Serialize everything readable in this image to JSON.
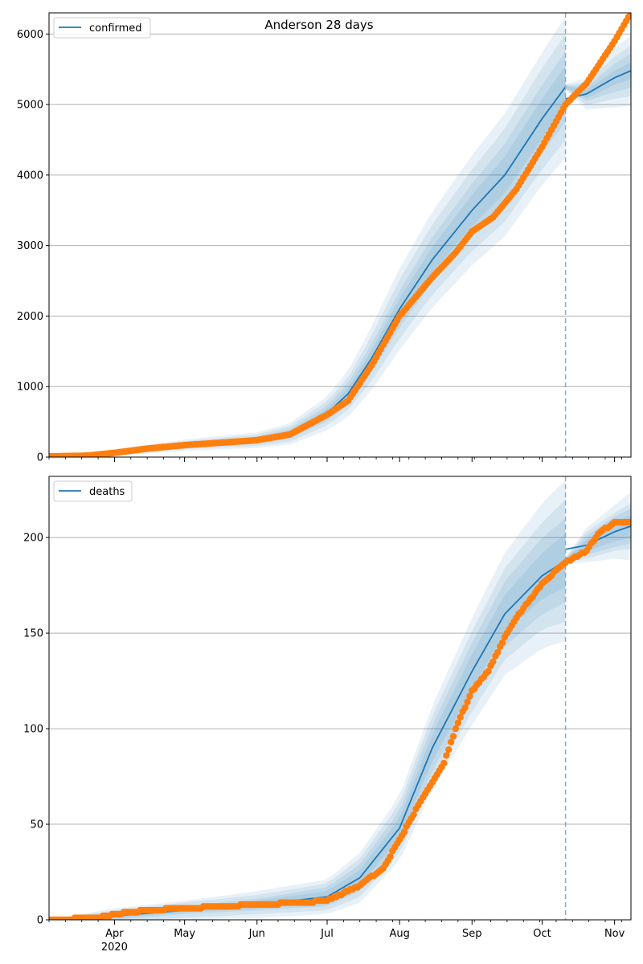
{
  "figure_title": "Anderson 28 days",
  "x_ticks": [
    {
      "date": "2020-04-01",
      "label": "Apr",
      "sublabel": "2020"
    },
    {
      "date": "2020-05-01",
      "label": "May"
    },
    {
      "date": "2020-06-01",
      "label": "Jun"
    },
    {
      "date": "2020-07-01",
      "label": "Jul"
    },
    {
      "date": "2020-08-01",
      "label": "Aug"
    },
    {
      "date": "2020-09-01",
      "label": "Sep"
    },
    {
      "date": "2020-10-01",
      "label": "Oct"
    },
    {
      "date": "2020-11-01",
      "label": "Nov"
    }
  ],
  "colors": {
    "model_line": "#1f77b4",
    "observed_points": "#ff7f0e",
    "band": "#1f77b4",
    "forecast_divider": "#7aaee0",
    "grid": "#b0b0b0"
  },
  "chart_data": [
    {
      "type": "line",
      "name": "confirmed",
      "legend": "top-left",
      "grid": "horizontal",
      "xlim": [
        "2020-03-04",
        "2020-11-08"
      ],
      "ylim": [
        0,
        6300
      ],
      "yticks": [
        0,
        1000,
        2000,
        3000,
        4000,
        5000,
        6000
      ],
      "forecast_start": "2020-10-11",
      "model": {
        "name": "confirmed",
        "x": [
          "2020-03-04",
          "2020-04-01",
          "2020-05-01",
          "2020-06-01",
          "2020-06-15",
          "2020-07-01",
          "2020-07-10",
          "2020-07-20",
          "2020-08-01",
          "2020-08-15",
          "2020-09-01",
          "2020-09-15",
          "2020-10-01",
          "2020-10-11",
          "2020-10-20",
          "2020-11-01",
          "2020-11-08"
        ],
        "y": [
          0,
          60,
          170,
          240,
          330,
          620,
          900,
          1400,
          2100,
          2800,
          3500,
          4000,
          4800,
          5250,
          5150,
          5380,
          5480
        ],
        "band_half_widths": [
          [
            0,
            10,
            20,
            30,
            40,
            60,
            80,
            110,
            150,
            180,
            220,
            260,
            280,
            300,
            60,
            100,
            120
          ],
          [
            0,
            20,
            35,
            50,
            70,
            110,
            150,
            200,
            260,
            320,
            380,
            440,
            480,
            500,
            100,
            200,
            240
          ],
          [
            0,
            30,
            55,
            80,
            110,
            170,
            230,
            320,
            420,
            500,
            580,
            660,
            720,
            750,
            160,
            300,
            360
          ],
          [
            0,
            45,
            80,
            110,
            150,
            240,
            330,
            450,
            580,
            680,
            780,
            870,
            940,
            1000,
            220,
            420,
            500
          ]
        ]
      },
      "observed": {
        "x": [
          "2020-03-04",
          "2020-03-20",
          "2020-04-01",
          "2020-04-15",
          "2020-05-01",
          "2020-05-15",
          "2020-06-01",
          "2020-06-15",
          "2020-07-01",
          "2020-07-10",
          "2020-07-20",
          "2020-08-01",
          "2020-08-15",
          "2020-08-25",
          "2020-09-01",
          "2020-09-10",
          "2020-09-20",
          "2020-10-01",
          "2020-10-11",
          "2020-10-20",
          "2020-11-01",
          "2020-11-08"
        ],
        "y": [
          10,
          20,
          60,
          120,
          170,
          200,
          240,
          320,
          600,
          800,
          1300,
          2000,
          2550,
          2900,
          3200,
          3400,
          3800,
          4400,
          5000,
          5300,
          5900,
          6300
        ]
      }
    },
    {
      "type": "line",
      "name": "deaths",
      "legend": "top-left",
      "grid": "horizontal",
      "xlim": [
        "2020-03-04",
        "2020-11-08"
      ],
      "ylim": [
        0,
        232
      ],
      "yticks": [
        0,
        50,
        100,
        150,
        200
      ],
      "forecast_start": "2020-10-11",
      "model": {
        "name": "deaths",
        "x": [
          "2020-03-04",
          "2020-04-01",
          "2020-05-01",
          "2020-06-01",
          "2020-07-01",
          "2020-07-15",
          "2020-08-01",
          "2020-08-15",
          "2020-09-01",
          "2020-09-15",
          "2020-10-01",
          "2020-10-11",
          "2020-10-20",
          "2020-11-01",
          "2020-11-08"
        ],
        "y": [
          0,
          2,
          5,
          8,
          12,
          22,
          48,
          90,
          130,
          160,
          180,
          188,
          196,
          203,
          206
        ],
        "band_half_widths": [
          [
            0,
            1,
            1,
            2,
            3,
            4,
            5,
            7,
            9,
            10,
            12,
            14,
            3,
            5,
            6
          ],
          [
            0,
            2,
            2,
            3,
            5,
            7,
            9,
            12,
            15,
            17,
            20,
            22,
            5,
            8,
            9
          ],
          [
            0,
            3,
            4,
            5,
            7,
            10,
            13,
            17,
            21,
            24,
            28,
            32,
            7,
            10,
            12
          ],
          [
            0,
            4,
            5,
            7,
            9,
            13,
            17,
            22,
            28,
            32,
            38,
            42,
            9,
            14,
            18
          ]
        ]
      },
      "observed": {
        "x": [
          "2020-03-04",
          "2020-03-25",
          "2020-04-01",
          "2020-04-15",
          "2020-05-01",
          "2020-06-01",
          "2020-06-20",
          "2020-07-01",
          "2020-07-15",
          "2020-07-25",
          "2020-08-01",
          "2020-08-10",
          "2020-08-20",
          "2020-08-25",
          "2020-09-01",
          "2020-09-08",
          "2020-09-15",
          "2020-09-20",
          "2020-10-01",
          "2020-10-11",
          "2020-10-20",
          "2020-10-25",
          "2020-11-01",
          "2020-11-08"
        ],
        "y": [
          0,
          1,
          3,
          5,
          6,
          8,
          9,
          10,
          18,
          27,
          42,
          62,
          82,
          100,
          120,
          130,
          148,
          158,
          176,
          187,
          193,
          202,
          208,
          208
        ]
      }
    }
  ]
}
